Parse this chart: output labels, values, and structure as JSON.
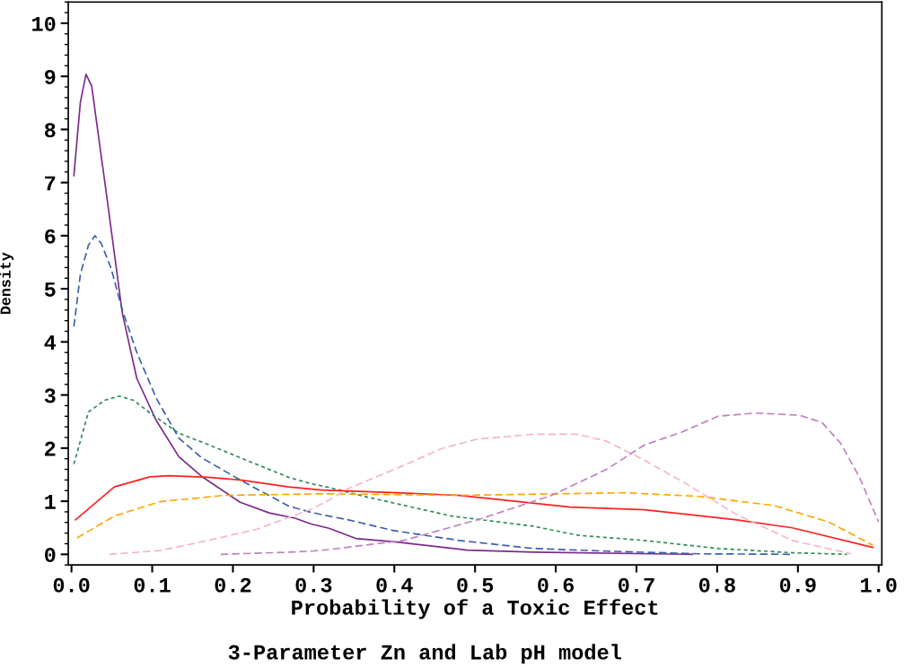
{
  "chart_data": {
    "type": "line",
    "title": "3-Parameter Zn and Lab pH model",
    "xlabel": "Probability of a Toxic Effect",
    "ylabel": "Density",
    "xlim": [
      -0.004,
      1.004
    ],
    "ylim": [
      -0.2,
      10.4
    ],
    "xticks": [
      {
        "value": 0,
        "label": "0.0"
      },
      0.1,
      0.2,
      0.3,
      0.4,
      0.5,
      0.6,
      0.7,
      0.8,
      0.9,
      {
        "value": 1,
        "label": "1.0"
      }
    ],
    "yticks": [
      0,
      1,
      2,
      3,
      4,
      5,
      6,
      7,
      8,
      9,
      10
    ],
    "grid": false,
    "legend": false,
    "marker": "none",
    "series": [
      {
        "color": "#7b2a8a",
        "line_style": "solid",
        "x": [
          0.003,
          0.011,
          0.018,
          0.025,
          0.043,
          0.063,
          0.081,
          0.105,
          0.133,
          0.161,
          0.209,
          0.245,
          0.277,
          0.297,
          0.319,
          0.352,
          0.403,
          0.49,
          0.572,
          0.769
        ],
        "values": [
          7.13,
          8.51,
          9.04,
          8.82,
          6.82,
          4.54,
          3.31,
          2.52,
          1.84,
          1.47,
          0.98,
          0.78,
          0.68,
          0.57,
          0.49,
          0.3,
          0.23,
          0.08,
          0.04,
          0.0
        ]
      },
      {
        "color": "#3a5fb0",
        "line_style": "dashed",
        "x": [
          0.003,
          0.011,
          0.021,
          0.029,
          0.037,
          0.049,
          0.063,
          0.081,
          0.105,
          0.133,
          0.161,
          0.209,
          0.269,
          0.297,
          0.319,
          0.343,
          0.398,
          0.481,
          0.572,
          0.663,
          0.778,
          0.893
        ],
        "values": [
          4.29,
          5.27,
          5.82,
          6.0,
          5.85,
          5.39,
          4.6,
          3.8,
          2.94,
          2.19,
          1.82,
          1.4,
          0.91,
          0.79,
          0.72,
          0.65,
          0.45,
          0.26,
          0.11,
          0.06,
          0.01,
          0.0
        ]
      },
      {
        "color": "#2e8b57",
        "line_style": "dotted",
        "x": [
          0.003,
          0.021,
          0.041,
          0.059,
          0.077,
          0.101,
          0.133,
          0.169,
          0.209,
          0.269,
          0.297,
          0.319,
          0.366,
          0.471,
          0.572,
          0.627,
          0.71,
          0.801,
          0.893,
          0.961
        ],
        "values": [
          1.7,
          2.68,
          2.9,
          2.98,
          2.9,
          2.62,
          2.28,
          2.07,
          1.82,
          1.45,
          1.33,
          1.26,
          1.08,
          0.72,
          0.53,
          0.36,
          0.26,
          0.11,
          0.03,
          0.0
        ]
      },
      {
        "color": "#ff2020",
        "line_style": "solid",
        "x": [
          0.005,
          0.053,
          0.097,
          0.121,
          0.169,
          0.209,
          0.269,
          0.31,
          0.403,
          0.481,
          0.618,
          0.71,
          0.824,
          0.893,
          0.993
        ],
        "values": [
          0.65,
          1.27,
          1.46,
          1.48,
          1.45,
          1.4,
          1.27,
          1.21,
          1.16,
          1.11,
          0.89,
          0.84,
          0.65,
          0.5,
          0.13
        ]
      },
      {
        "color": "#ffa500",
        "line_style": "dashed",
        "x": [
          0.007,
          0.053,
          0.109,
          0.189,
          0.31,
          0.481,
          0.686,
          0.778,
          0.87,
          0.938,
          0.993
        ],
        "values": [
          0.31,
          0.72,
          0.99,
          1.11,
          1.14,
          1.11,
          1.16,
          1.09,
          0.92,
          0.61,
          0.17
        ]
      },
      {
        "color": "#f4b6c8",
        "line_style": "dashed",
        "x": [
          0.047,
          0.109,
          0.157,
          0.229,
          0.297,
          0.319,
          0.343,
          0.411,
          0.458,
          0.503,
          0.572,
          0.627,
          0.663,
          0.71,
          0.756,
          0.824,
          0.893,
          0.966
        ],
        "values": [
          0.0,
          0.07,
          0.22,
          0.47,
          0.85,
          1.02,
          1.24,
          1.67,
          1.99,
          2.17,
          2.26,
          2.26,
          2.13,
          1.77,
          1.38,
          0.75,
          0.26,
          0.01
        ]
      },
      {
        "color": "#c080c0",
        "line_style": "dashed",
        "x": [
          0.185,
          0.269,
          0.297,
          0.319,
          0.411,
          0.503,
          0.595,
          0.663,
          0.71,
          0.756,
          0.801,
          0.847,
          0.902,
          0.93,
          0.953,
          0.976,
          1.0
        ],
        "values": [
          0.0,
          0.04,
          0.06,
          0.09,
          0.26,
          0.65,
          1.11,
          1.6,
          2.06,
          2.3,
          2.6,
          2.66,
          2.62,
          2.48,
          2.09,
          1.46,
          0.61
        ]
      }
    ]
  }
}
